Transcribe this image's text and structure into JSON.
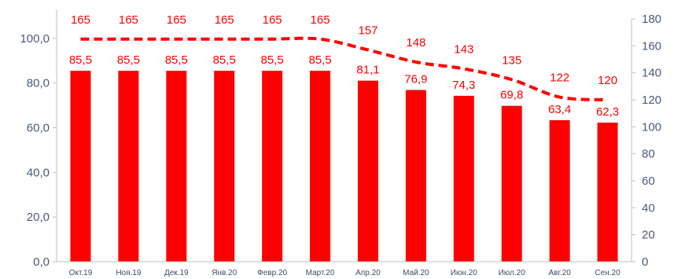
{
  "chart_data": {
    "type": "bar",
    "categories": [
      "Окт.19",
      "Ноя.19",
      "Дек.19",
      "Янв.20",
      "Февр.20",
      "Март.20",
      "Апр.20",
      "Май.20",
      "Июн.20",
      "Июл.20",
      "Авг.20",
      "Сен.20"
    ],
    "series": [
      {
        "type": "bar",
        "axis": "left",
        "color": "#ff0000",
        "values": [
          85.5,
          85.5,
          85.5,
          85.5,
          85.5,
          85.5,
          81.1,
          76.9,
          74.3,
          69.8,
          63.4,
          62.3
        ],
        "labels": [
          "85,5",
          "85,5",
          "85,5",
          "85,5",
          "85,5",
          "85,5",
          "81,1",
          "76,9",
          "74,3",
          "69,8",
          "63,4",
          "62,3"
        ]
      },
      {
        "type": "line",
        "style": "dashed",
        "axis": "right",
        "color": "#ff0000",
        "values": [
          165,
          165,
          165,
          165,
          165,
          165,
          157,
          148,
          143,
          135,
          122,
          120
        ],
        "labels": [
          "165",
          "165",
          "165",
          "165",
          "165",
          "165",
          "157",
          "148",
          "143",
          "135",
          "122",
          "120"
        ]
      }
    ],
    "left_axis": {
      "ylim": [
        0,
        110
      ],
      "ticks": [
        0,
        20,
        40,
        60,
        80,
        100
      ],
      "tick_labels": [
        "0,0",
        "20,0",
        "40,0",
        "60,0",
        "80,0",
        "100,0"
      ]
    },
    "right_axis": {
      "ylim": [
        0,
        180
      ],
      "ticks": [
        0,
        20,
        40,
        60,
        80,
        100,
        120,
        140,
        160,
        180
      ],
      "tick_labels": [
        "0",
        "20",
        "40",
        "60",
        "80",
        "100",
        "120",
        "140",
        "160",
        "180"
      ]
    },
    "grid": false,
    "legend": "none"
  }
}
